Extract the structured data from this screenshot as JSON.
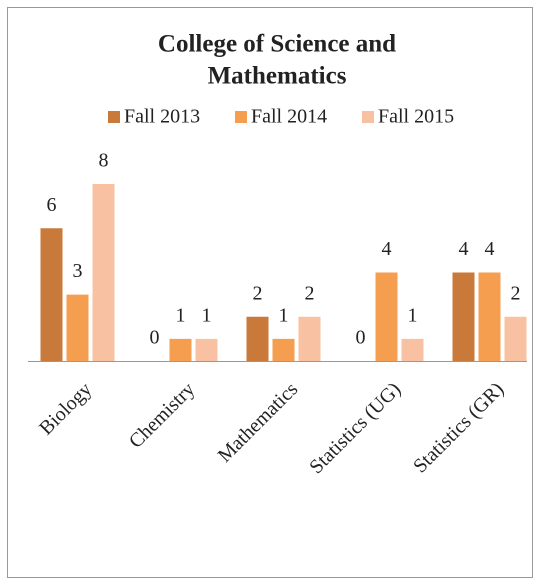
{
  "chart_data": {
    "type": "bar",
    "title": [
      "College of Science and",
      "Mathematics"
    ],
    "categories": [
      "Biology",
      "Chemistry",
      "Mathematics",
      "Statistics (UG)",
      "Statistics (GR)"
    ],
    "series": [
      {
        "name": "Fall 2013",
        "color": "#c97a3a",
        "values": [
          6,
          0,
          2,
          0,
          4
        ]
      },
      {
        "name": "Fall 2014",
        "color": "#f59e4f",
        "values": [
          3,
          1,
          1,
          4,
          4
        ]
      },
      {
        "name": "Fall 2015",
        "color": "#f8c2a2",
        "values": [
          8,
          1,
          2,
          1,
          2
        ]
      }
    ],
    "ylim": [
      0,
      8
    ]
  }
}
